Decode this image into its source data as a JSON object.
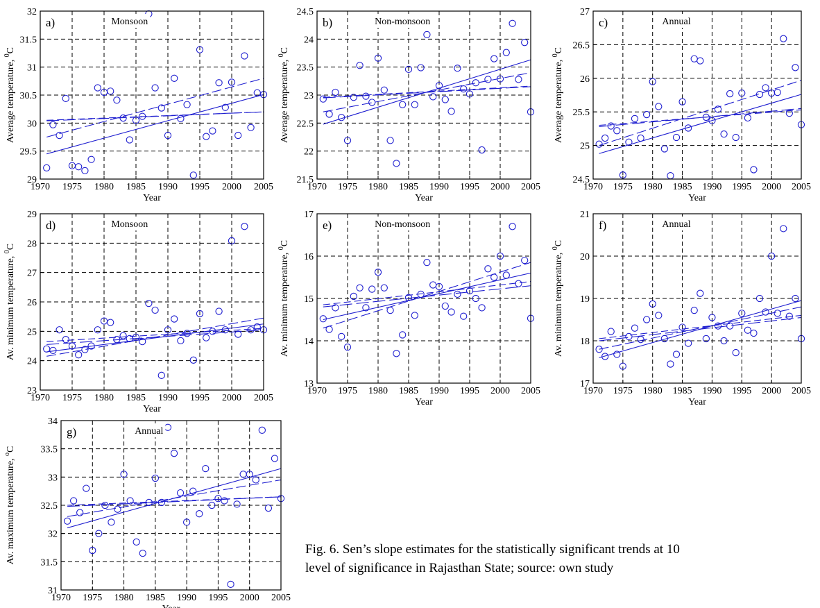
{
  "chart_data": [
    {
      "id": "a",
      "type": "scatter",
      "panel_label": "a)",
      "title": "Monsoon",
      "xlabel": "Year",
      "ylabel": "Average temperature, ",
      "ylabel_sup": "0",
      "ylabel_unit": "C",
      "xlim": [
        1970,
        2005
      ],
      "ylim": [
        29,
        32
      ],
      "xticks": [
        "1970",
        "1975",
        "1980",
        "1985",
        "1990",
        "1995",
        "2000",
        "2005"
      ],
      "yticks": [
        "29",
        "29.5",
        "30",
        "30.5",
        "31",
        "31.5",
        "32"
      ],
      "x": [
        1971,
        1972,
        1973,
        1974,
        1975,
        1976,
        1977,
        1978,
        1979,
        1980,
        1981,
        1982,
        1983,
        1984,
        1985,
        1986,
        1987,
        1988,
        1989,
        1990,
        1991,
        1992,
        1993,
        1994,
        1995,
        1996,
        1997,
        1998,
        1999,
        2000,
        2001,
        2002,
        2003,
        2004,
        2005
      ],
      "y": [
        29.2,
        29.97,
        29.78,
        30.44,
        29.24,
        29.22,
        29.15,
        29.35,
        30.63,
        30.55,
        30.57,
        30.41,
        30.09,
        29.7,
        30.05,
        30.12,
        31.95,
        30.63,
        30.27,
        29.78,
        30.8,
        30.08,
        30.33,
        29.07,
        31.31,
        29.76,
        29.86,
        30.72,
        30.28,
        30.73,
        29.78,
        31.2,
        29.92,
        30.54,
        30.51
      ],
      "trend_lines": [
        {
          "x": [
            1971,
            2005
          ],
          "y": [
            29.45,
            30.51
          ]
        },
        {
          "x": [
            1971,
            2005
          ],
          "y": [
            29.75,
            30.8
          ]
        },
        {
          "x": [
            1971,
            2005
          ],
          "y": [
            30.04,
            30.2
          ]
        },
        {
          "x": [
            1971,
            2005
          ],
          "y": [
            30.05,
            30.2
          ]
        }
      ]
    },
    {
      "id": "b",
      "type": "scatter",
      "panel_label": "b)",
      "title": "Non-monsoon",
      "xlabel": "Year",
      "ylabel": "Average temperature, ",
      "ylabel_sup": "0",
      "ylabel_unit": "C",
      "xlim": [
        1970,
        2005
      ],
      "ylim": [
        21.5,
        24.5
      ],
      "xticks": [
        "1970",
        "1975",
        "1980",
        "1985",
        "1990",
        "1995",
        "2000",
        "2005"
      ],
      "yticks": [
        "21.5",
        "22",
        "22.5",
        "23",
        "23.5",
        "24",
        "24.5"
      ],
      "x": [
        1971,
        1972,
        1973,
        1974,
        1975,
        1976,
        1977,
        1978,
        1979,
        1980,
        1981,
        1982,
        1983,
        1984,
        1985,
        1986,
        1987,
        1988,
        1989,
        1990,
        1991,
        1992,
        1993,
        1994,
        1995,
        1996,
        1997,
        1998,
        1999,
        2000,
        2001,
        2002,
        2003,
        2004,
        2005
      ],
      "y": [
        22.93,
        22.66,
        23.05,
        22.6,
        22.19,
        22.96,
        23.53,
        22.98,
        22.87,
        23.66,
        23.09,
        22.19,
        21.78,
        22.83,
        23.46,
        22.83,
        23.49,
        24.08,
        22.97,
        23.17,
        22.92,
        22.71,
        23.48,
        23.11,
        23.02,
        23.22,
        22.02,
        23.28,
        23.65,
        23.29,
        23.76,
        24.28,
        23.28,
        23.94,
        22.7
      ],
      "trend_lines": [
        {
          "x": [
            1971,
            2005
          ],
          "y": [
            22.48,
            23.63
          ]
        },
        {
          "x": [
            1971,
            2005
          ],
          "y": [
            22.7,
            23.4
          ]
        },
        {
          "x": [
            1971,
            2005
          ],
          "y": [
            22.95,
            23.15
          ]
        },
        {
          "x": [
            1971,
            2005
          ],
          "y": [
            22.96,
            23.16
          ]
        }
      ]
    },
    {
      "id": "c",
      "type": "scatter",
      "panel_label": "c)",
      "title": "Annual",
      "xlabel": "Year",
      "ylabel": "Average temperature, ",
      "ylabel_sup": "0",
      "ylabel_unit": "C",
      "xlim": [
        1970,
        2005
      ],
      "ylim": [
        24.5,
        27
      ],
      "xticks": [
        "1970",
        "1975",
        "1980",
        "1985",
        "1990",
        "1995",
        "2000",
        "2005"
      ],
      "yticks": [
        "24.5",
        "25",
        "25.5",
        "26",
        "26.5",
        "27"
      ],
      "x": [
        1971,
        1972,
        1973,
        1974,
        1975,
        1976,
        1977,
        1978,
        1979,
        1980,
        1981,
        1982,
        1983,
        1984,
        1985,
        1986,
        1987,
        1988,
        1989,
        1990,
        1991,
        1992,
        1993,
        1994,
        1995,
        1996,
        1997,
        1998,
        1999,
        2000,
        2001,
        2002,
        2003,
        2004,
        2005
      ],
      "y": [
        25.02,
        25.11,
        25.29,
        25.22,
        24.56,
        25.05,
        25.4,
        25.11,
        25.46,
        25.95,
        25.58,
        24.95,
        24.55,
        25.12,
        25.65,
        25.26,
        26.29,
        26.26,
        25.42,
        25.37,
        25.54,
        25.17,
        25.77,
        25.12,
        25.78,
        25.41,
        24.64,
        25.76,
        25.86,
        25.78,
        25.79,
        26.59,
        25.48,
        26.16,
        25.31
      ],
      "trend_lines": [
        {
          "x": [
            1971,
            2005
          ],
          "y": [
            24.88,
            25.76
          ]
        },
        {
          "x": [
            1971,
            2005
          ],
          "y": [
            25.0,
            25.97
          ]
        },
        {
          "x": [
            1971,
            2005
          ],
          "y": [
            25.28,
            25.55
          ]
        },
        {
          "x": [
            1971,
            2005
          ],
          "y": [
            25.3,
            25.53
          ]
        }
      ]
    },
    {
      "id": "d",
      "type": "scatter",
      "panel_label": "d)",
      "title": "Monsoon",
      "xlabel": "Year",
      "ylabel": "Av. minimum temperature, ",
      "ylabel_sup": "0",
      "ylabel_unit": "C",
      "xlim": [
        1970,
        2005
      ],
      "ylim": [
        23,
        29
      ],
      "xticks": [
        "1970",
        "1975",
        "1980",
        "1985",
        "1990",
        "1995",
        "2000",
        "2005"
      ],
      "yticks": [
        "23",
        "24",
        "25",
        "26",
        "27",
        "28",
        "29"
      ],
      "x": [
        1971,
        1972,
        1973,
        1974,
        1975,
        1976,
        1977,
        1978,
        1979,
        1980,
        1981,
        1982,
        1983,
        1984,
        1985,
        1986,
        1987,
        1988,
        1989,
        1990,
        1991,
        1992,
        1993,
        1994,
        1995,
        1996,
        1997,
        1998,
        1999,
        2000,
        2001,
        2002,
        2003,
        2004,
        2005
      ],
      "y": [
        24.4,
        24.35,
        25.05,
        24.72,
        24.5,
        24.2,
        24.38,
        24.5,
        25.05,
        25.35,
        25.3,
        24.72,
        24.85,
        24.75,
        24.8,
        24.65,
        25.95,
        25.72,
        23.5,
        25.05,
        25.42,
        24.68,
        24.93,
        24.02,
        25.6,
        24.78,
        25.0,
        25.68,
        25.05,
        28.08,
        24.9,
        28.57,
        25.05,
        25.15,
        25.05
      ],
      "trend_lines": [
        {
          "x": [
            1971,
            2005
          ],
          "y": [
            24.3,
            25.25
          ]
        },
        {
          "x": [
            1971,
            2005
          ],
          "y": [
            24.15,
            25.45
          ]
        },
        {
          "x": [
            1971,
            2005
          ],
          "y": [
            24.55,
            25.05
          ]
        },
        {
          "x": [
            1971,
            2005
          ],
          "y": [
            24.65,
            25.1
          ]
        }
      ]
    },
    {
      "id": "e",
      "type": "scatter",
      "panel_label": "e)",
      "title": "Non-monsoon",
      "xlabel": "Year",
      "ylabel": "Av. minimum temperature, ",
      "ylabel_sup": "0",
      "ylabel_unit": "C",
      "xlim": [
        1970,
        2005
      ],
      "ylim": [
        13,
        17
      ],
      "xticks": [
        "1970",
        "1975",
        "1980",
        "1985",
        "1990",
        "1995",
        "2000",
        "2005"
      ],
      "yticks": [
        "13",
        "14",
        "15",
        "16",
        "17"
      ],
      "x": [
        1971,
        1972,
        1973,
        1974,
        1975,
        1976,
        1977,
        1978,
        1979,
        1980,
        1981,
        1982,
        1983,
        1984,
        1985,
        1986,
        1987,
        1988,
        1989,
        1990,
        1991,
        1992,
        1993,
        1994,
        1995,
        1996,
        1997,
        1998,
        1999,
        2000,
        2001,
        2002,
        2003,
        2004,
        2005
      ],
      "y": [
        14.52,
        14.27,
        14.78,
        14.1,
        13.85,
        15.05,
        15.25,
        14.78,
        15.22,
        15.62,
        15.25,
        14.72,
        13.7,
        14.14,
        15.02,
        14.6,
        15.1,
        15.85,
        15.32,
        15.28,
        14.82,
        14.68,
        15.1,
        14.58,
        15.18,
        15.0,
        14.78,
        15.7,
        15.5,
        16.0,
        15.55,
        16.7,
        15.35,
        15.9,
        14.53
      ],
      "trend_lines": [
        {
          "x": [
            1971,
            2005
          ],
          "y": [
            14.5,
            15.6
          ]
        },
        {
          "x": [
            1971,
            2005
          ],
          "y": [
            14.3,
            15.85
          ]
        },
        {
          "x": [
            1971,
            2005
          ],
          "y": [
            14.8,
            15.3
          ]
        },
        {
          "x": [
            1971,
            2005
          ],
          "y": [
            14.85,
            15.4
          ]
        }
      ]
    },
    {
      "id": "f",
      "type": "scatter",
      "panel_label": "f)",
      "title": "Annual",
      "xlabel": "Year",
      "ylabel": "Av. minimum temperature, ",
      "ylabel_sup": "0",
      "ylabel_unit": "C",
      "xlim": [
        1970,
        2005
      ],
      "ylim": [
        17,
        21
      ],
      "xticks": [
        "1970",
        "1975",
        "1980",
        "1985",
        "1990",
        "1995",
        "2000",
        "2005"
      ],
      "yticks": [
        "17",
        "18",
        "19",
        "20",
        "21"
      ],
      "x": [
        1971,
        1972,
        1973,
        1974,
        1975,
        1976,
        1977,
        1978,
        1979,
        1980,
        1981,
        1982,
        1983,
        1984,
        1985,
        1986,
        1987,
        1988,
        1989,
        1990,
        1991,
        1992,
        1993,
        1994,
        1995,
        1996,
        1997,
        1998,
        1999,
        2000,
        2001,
        2002,
        2003,
        2004,
        2005
      ],
      "y": [
        17.8,
        17.63,
        18.22,
        17.68,
        17.4,
        18.1,
        18.3,
        18.03,
        18.5,
        18.87,
        18.6,
        18.05,
        17.45,
        17.68,
        18.32,
        17.94,
        18.72,
        19.12,
        18.05,
        18.55,
        18.35,
        18.0,
        18.35,
        17.72,
        18.65,
        18.25,
        18.18,
        19.0,
        18.68,
        20.0,
        18.65,
        20.65,
        18.58,
        19.0,
        18.05
      ],
      "trend_lines": [
        {
          "x": [
            1971,
            2005
          ],
          "y": [
            17.6,
            18.95
          ]
        },
        {
          "x": [
            1971,
            2005
          ],
          "y": [
            17.8,
            18.8
          ]
        },
        {
          "x": [
            1971,
            2005
          ],
          "y": [
            18.0,
            18.55
          ]
        },
        {
          "x": [
            1971,
            2005
          ],
          "y": [
            18.05,
            18.6
          ]
        }
      ]
    },
    {
      "id": "g",
      "type": "scatter",
      "panel_label": "g)",
      "title": "Annual",
      "xlabel": "Year",
      "ylabel": "Av. maximum temperature, ",
      "ylabel_sup": "o",
      "ylabel_unit": "C",
      "xlim": [
        1970,
        2005
      ],
      "ylim": [
        31,
        34
      ],
      "xticks": [
        "1970",
        "1975",
        "1980",
        "1985",
        "1990",
        "1995",
        "2000",
        "2005"
      ],
      "yticks": [
        "31",
        "31.5",
        "32",
        "32.5",
        "33",
        "33.5",
        "34"
      ],
      "x": [
        1971,
        1972,
        1973,
        1974,
        1975,
        1976,
        1977,
        1978,
        1979,
        1980,
        1981,
        1982,
        1983,
        1984,
        1985,
        1986,
        1987,
        1988,
        1989,
        1990,
        1991,
        1992,
        1993,
        1994,
        1995,
        1996,
        1997,
        1998,
        1999,
        2000,
        2001,
        2002,
        2003,
        2004,
        2005
      ],
      "y": [
        32.22,
        32.58,
        32.37,
        32.8,
        31.7,
        32.0,
        32.5,
        32.2,
        32.43,
        33.05,
        32.58,
        31.85,
        31.65,
        32.55,
        32.98,
        32.55,
        33.88,
        33.42,
        32.72,
        32.2,
        32.75,
        32.35,
        33.15,
        32.5,
        32.62,
        32.58,
        31.1,
        32.52,
        33.05,
        33.05,
        32.95,
        33.83,
        32.45,
        33.33,
        32.62
      ],
      "trend_lines": [
        {
          "x": [
            1971,
            2005
          ],
          "y": [
            32.1,
            33.15
          ]
        },
        {
          "x": [
            1971,
            2005
          ],
          "y": [
            32.3,
            32.95
          ]
        },
        {
          "x": [
            1971,
            2005
          ],
          "y": [
            32.48,
            32.65
          ]
        },
        {
          "x": [
            1971,
            2005
          ],
          "y": [
            32.5,
            32.65
          ]
        }
      ]
    }
  ],
  "caption": {
    "line1": "Fig. 6. Sen’s slope estimates for the statistically significant trends at 10",
    "line2": "level of significance in Rajasthan State; source: own study"
  },
  "colors": {
    "data": "#1f1fd0",
    "axes": "#000000",
    "grid": "#000000"
  }
}
